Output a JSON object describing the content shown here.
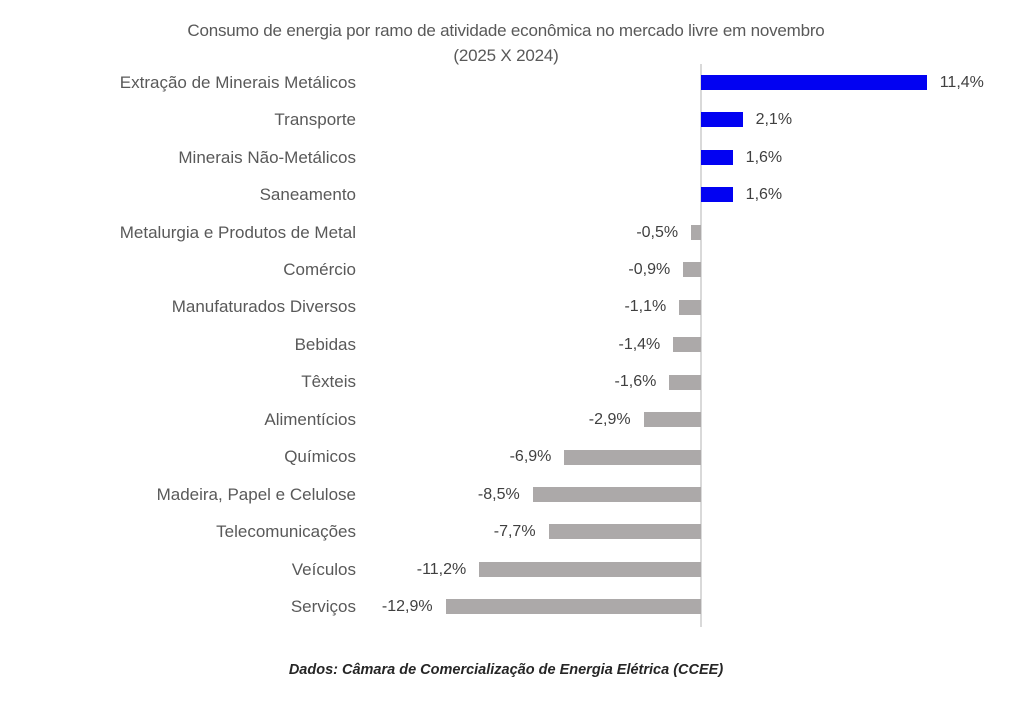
{
  "title": {
    "line1": "Consumo de energia por ramo de atividade econômica no mercado livre em novembro",
    "line2": "(2025 X 2024)"
  },
  "footer": {
    "source": "Dados: Câmara de Comercialização de Energia Elétrica (CCEE)"
  },
  "colors": {
    "positive_bar": "#0202F2",
    "negative_bar": "#ACA9A9",
    "axis_line": "#D9D9D9",
    "category_label": "#595959",
    "value_label": "#404040",
    "title_text": "#595959"
  },
  "chart_data": {
    "type": "bar",
    "orientation": "horizontal",
    "title": "Consumo de energia por ramo de atividade econômica no mercado livre em novembro (2025 X 2024)",
    "xlabel": "",
    "ylabel": "",
    "grid": false,
    "legend": false,
    "xlim": [
      -13.5,
      12.5
    ],
    "unit": "%",
    "categories": [
      "Extração de Minerais Metálicos",
      "Transporte",
      "Minerais Não-Metálicos",
      "Saneamento",
      "Metalurgia e Produtos de Metal",
      "Comércio",
      "Manufaturados Diversos",
      "Bebidas",
      "Têxteis",
      "Alimentícios",
      "Químicos",
      "Madeira, Papel e Celulose",
      "Telecomunicações",
      "Veículos",
      "Serviços"
    ],
    "values": [
      11.4,
      2.1,
      1.6,
      1.6,
      -0.5,
      -0.9,
      -1.1,
      -1.4,
      -1.6,
      -2.9,
      -6.9,
      -8.5,
      -7.7,
      -11.2,
      -12.9
    ],
    "value_labels": [
      "11,4%",
      "2,1%",
      "1,6%",
      "1,6%",
      "-0,5%",
      "-0,9%",
      "-1,1%",
      "-1,4%",
      "-1,6%",
      "-2,9%",
      "-6,9%",
      "-8,5%",
      "-7,7%",
      "-11,2%",
      "-12,9%"
    ]
  }
}
